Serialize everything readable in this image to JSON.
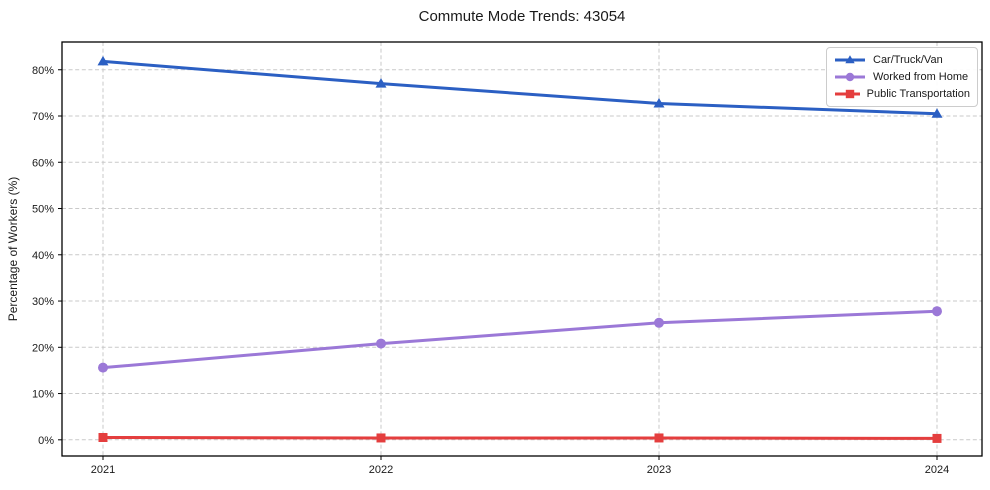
{
  "chart_data": {
    "type": "line",
    "title": "Commute Mode Trends: 43054",
    "xlabel": "",
    "ylabel": "Percentage of Workers (%)",
    "categories": [
      "2021",
      "2022",
      "2023",
      "2024"
    ],
    "y_ticks": [
      0,
      10,
      20,
      30,
      40,
      50,
      60,
      70,
      80
    ],
    "y_tick_labels": [
      "0%",
      "10%",
      "20%",
      "30%",
      "40%",
      "50%",
      "60%",
      "70%",
      "80%"
    ],
    "ylim": [
      -3.5,
      86
    ],
    "grid": true,
    "grid_style": "dashed",
    "legend_position": "upper right",
    "series": [
      {
        "name": "Car/Truck/Van",
        "marker": "triangle",
        "color": "#2b5fc3",
        "values": [
          81.8,
          77.0,
          72.7,
          70.5
        ]
      },
      {
        "name": "Worked from Home",
        "marker": "circle",
        "color": "#9b78d7",
        "values": [
          15.6,
          20.8,
          25.3,
          27.8
        ]
      },
      {
        "name": "Public Transportation",
        "marker": "square",
        "color": "#e43e3e",
        "values": [
          0.5,
          0.4,
          0.4,
          0.3
        ]
      }
    ]
  }
}
